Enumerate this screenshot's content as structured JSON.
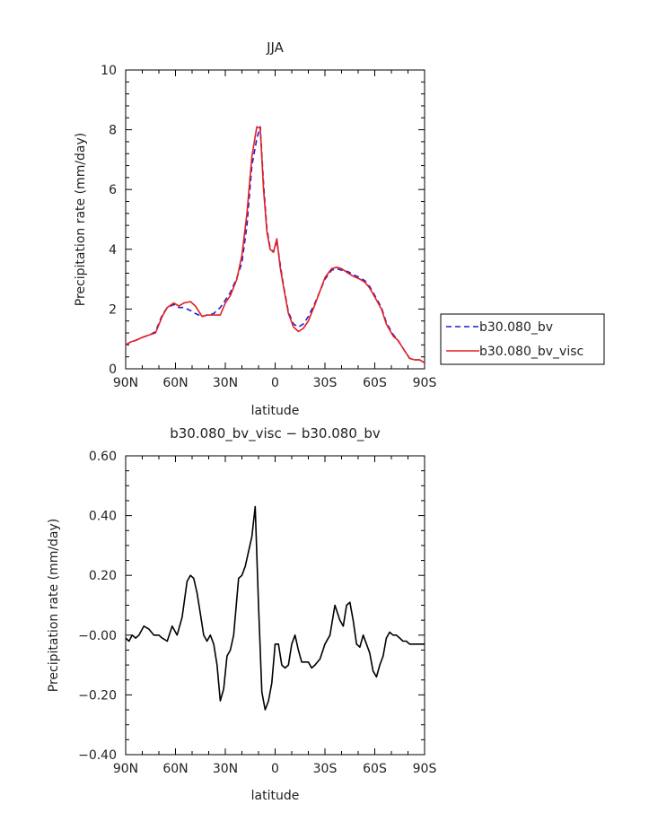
{
  "chart_data": [
    {
      "type": "line",
      "title": "JJA",
      "xlabel": "latitude",
      "ylabel": "Precipitation rate (mm/day)",
      "xlim": [
        90,
        -90
      ],
      "ylim": [
        0,
        10
      ],
      "xticks": [
        90,
        60,
        30,
        0,
        -30,
        -60,
        -90
      ],
      "xtick_labels": [
        "90N",
        "60N",
        "30N",
        "0",
        "30S",
        "60S",
        "90S"
      ],
      "yticks": [
        0,
        2,
        4,
        6,
        8,
        10
      ],
      "ytick_labels": [
        "0",
        "2",
        "4",
        "6",
        "8",
        "10"
      ],
      "legend_position": "right",
      "series": [
        {
          "name": "b30.080_bv",
          "color": "#1f1fd8",
          "dash": "dashed",
          "x": [
            90,
            87,
            84,
            80,
            75,
            72,
            68,
            65,
            61,
            58,
            55,
            51,
            48,
            44,
            41,
            37,
            33,
            30,
            27,
            23,
            20,
            17,
            14,
            11,
            9,
            7,
            5,
            3,
            1,
            -1,
            -3,
            -5,
            -8,
            -11,
            -14,
            -17,
            -20,
            -24,
            -27,
            -30,
            -34,
            -37,
            -40,
            -44,
            -47,
            -51,
            -54,
            -57,
            -61,
            -64,
            -67,
            -71,
            -74,
            -78,
            -81,
            -84,
            -87,
            -90
          ],
          "y": [
            0.8,
            0.9,
            0.95,
            1.05,
            1.15,
            1.25,
            1.8,
            2.05,
            2.15,
            2.05,
            2.05,
            1.95,
            1.85,
            1.75,
            1.8,
            1.85,
            2.05,
            2.3,
            2.55,
            3.05,
            3.55,
            4.8,
            6.8,
            7.7,
            8.1,
            6.2,
            4.7,
            4.05,
            3.9,
            4.3,
            3.5,
            2.8,
            1.9,
            1.5,
            1.4,
            1.5,
            1.75,
            2.2,
            2.6,
            3.0,
            3.3,
            3.35,
            3.3,
            3.25,
            3.15,
            3.05,
            2.95,
            2.75,
            2.35,
            2.05,
            1.55,
            1.15,
            0.95,
            0.6,
            0.35,
            0.3,
            0.3,
            0.2
          ]
        },
        {
          "name": "b30.080_bv_visc",
          "color": "#e61e1e",
          "dash": "solid",
          "x": [
            90,
            87,
            84,
            80,
            75,
            72,
            68,
            65,
            61,
            58,
            55,
            51,
            48,
            44,
            41,
            37,
            33,
            30,
            27,
            23,
            20,
            17,
            14,
            11,
            9,
            7,
            5,
            3,
            1,
            -1,
            -3,
            -5,
            -8,
            -11,
            -14,
            -17,
            -20,
            -24,
            -27,
            -30,
            -34,
            -37,
            -40,
            -44,
            -47,
            -51,
            -54,
            -57,
            -61,
            -64,
            -67,
            -71,
            -74,
            -78,
            -81,
            -84,
            -87,
            -90
          ],
          "y": [
            0.8,
            0.9,
            0.95,
            1.05,
            1.15,
            1.2,
            1.75,
            2.05,
            2.2,
            2.1,
            2.2,
            2.25,
            2.1,
            1.75,
            1.8,
            1.8,
            1.8,
            2.2,
            2.45,
            3.0,
            3.8,
            5.2,
            7.1,
            8.1,
            8.05,
            6.0,
            4.6,
            4.0,
            3.9,
            4.35,
            3.4,
            2.75,
            1.85,
            1.4,
            1.25,
            1.35,
            1.6,
            2.15,
            2.6,
            3.05,
            3.35,
            3.4,
            3.35,
            3.2,
            3.1,
            3.0,
            2.9,
            2.7,
            2.3,
            2.0,
            1.5,
            1.1,
            0.95,
            0.6,
            0.35,
            0.3,
            0.3,
            0.2
          ]
        }
      ]
    },
    {
      "type": "line",
      "title": "b30.080_bv_visc − b30.080_bv",
      "xlabel": "latitude",
      "ylabel": "Precipitation rate (mm/day)",
      "xlim": [
        90,
        -90
      ],
      "ylim": [
        -0.4,
        0.6
      ],
      "xticks": [
        90,
        60,
        30,
        0,
        -30,
        -60,
        -90
      ],
      "xtick_labels": [
        "90N",
        "60N",
        "30N",
        "0",
        "30S",
        "60S",
        "90S"
      ],
      "yticks": [
        -0.4,
        -0.2,
        0,
        0.2,
        0.4,
        0.6
      ],
      "ytick_labels": [
        "−0.40",
        "−0.20",
        "−0.00",
        "0.20",
        "0.40",
        "0.60"
      ],
      "series": [
        {
          "color": "#000000",
          "x": [
            90,
            88,
            86,
            84,
            82,
            79,
            76,
            73,
            70,
            68,
            65,
            62,
            59,
            56,
            53,
            51,
            49,
            47,
            45,
            43,
            41,
            39,
            37,
            35,
            33,
            31,
            29,
            27,
            25,
            22,
            20,
            18,
            16,
            14,
            12,
            10,
            8,
            6,
            4,
            2,
            0,
            -2,
            -4,
            -6,
            -8,
            -10,
            -12,
            -14,
            -16,
            -18,
            -20,
            -22,
            -24,
            -27,
            -30,
            -33,
            -36,
            -39,
            -41,
            -43,
            -45,
            -47,
            -49,
            -51,
            -53,
            -55,
            -57,
            -59,
            -61,
            -63,
            -65,
            -67,
            -69,
            -71,
            -73,
            -75,
            -77,
            -79,
            -81,
            -83,
            -85,
            -87,
            -90
          ],
          "y": [
            -0.01,
            -0.02,
            0.0,
            -0.01,
            0.0,
            0.03,
            0.02,
            0.0,
            0.0,
            -0.01,
            -0.02,
            0.03,
            0.0,
            0.06,
            0.18,
            0.2,
            0.19,
            0.14,
            0.07,
            0.0,
            -0.02,
            0.0,
            -0.03,
            -0.1,
            -0.22,
            -0.18,
            -0.07,
            -0.05,
            0.0,
            0.19,
            0.2,
            0.23,
            0.28,
            0.33,
            0.43,
            0.1,
            -0.19,
            -0.25,
            -0.22,
            -0.16,
            -0.03,
            -0.03,
            -0.1,
            -0.11,
            -0.1,
            -0.03,
            0.0,
            -0.05,
            -0.09,
            -0.09,
            -0.09,
            -0.11,
            -0.1,
            -0.08,
            -0.03,
            0.0,
            0.1,
            0.05,
            0.03,
            0.1,
            0.11,
            0.05,
            -0.03,
            -0.04,
            0.0,
            -0.03,
            -0.06,
            -0.12,
            -0.14,
            -0.1,
            -0.07,
            -0.01,
            0.01,
            0.0,
            0.0,
            -0.01,
            -0.02,
            -0.02,
            -0.03,
            -0.03,
            -0.03,
            -0.03,
            -0.03
          ]
        }
      ]
    }
  ]
}
